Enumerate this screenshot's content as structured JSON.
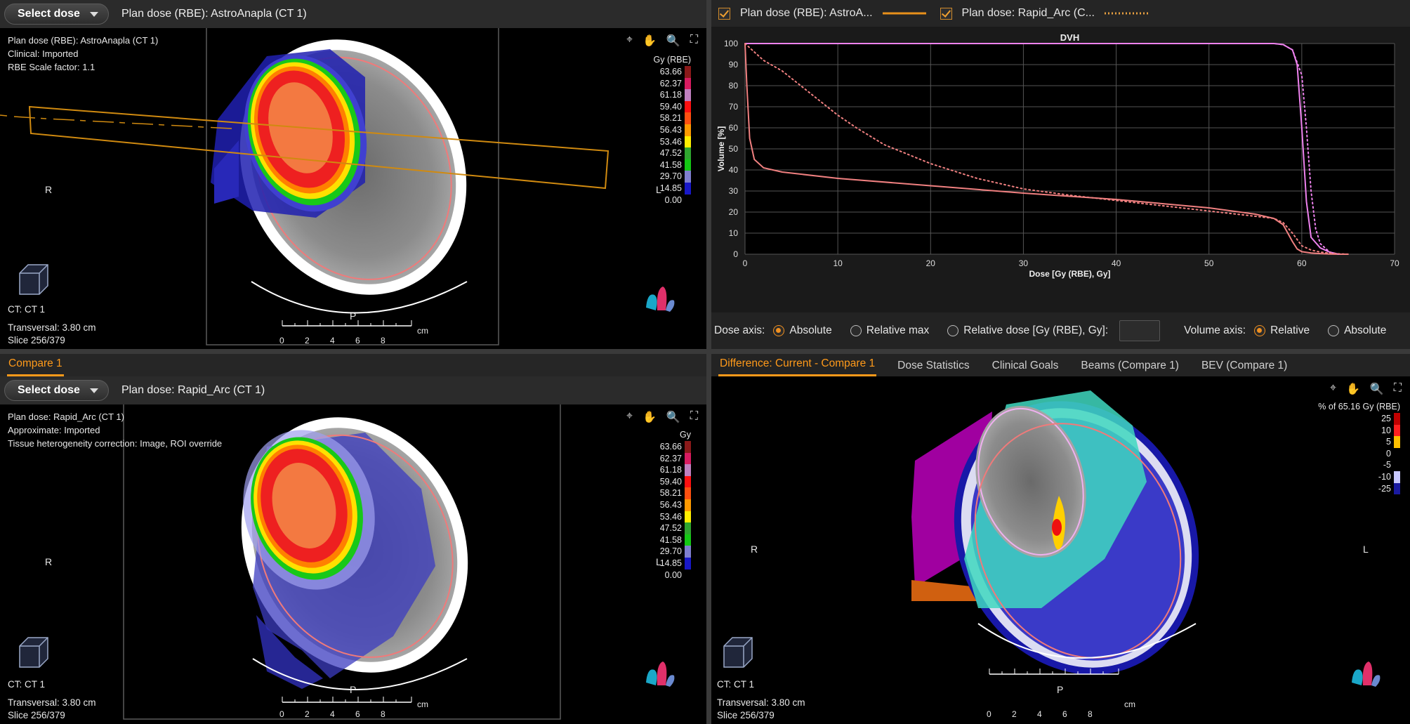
{
  "top_left": {
    "dropdown_label": "Select dose",
    "title": "Plan dose (RBE): AstroAnapla (CT 1)",
    "info": [
      "Plan dose (RBE): AstroAnapla (CT 1)",
      "Clinical: Imported",
      "RBE Scale factor: 1.1"
    ],
    "legend_unit": "Gy (RBE)",
    "orient_left": "R",
    "orient_bottom": "P",
    "orient_l": "L",
    "footer": [
      "CT: CT 1",
      "Transversal: 3.80 cm",
      "Slice 256/379"
    ]
  },
  "bottom_left": {
    "tab": "Compare 1",
    "dropdown_label": "Select dose",
    "title": "Plan dose: Rapid_Arc (CT 1)",
    "info": [
      "Plan dose: Rapid_Arc (CT 1)",
      "Approximate: Imported",
      "Tissue heterogeneity correction: Image, ROI override"
    ],
    "legend_unit": "Gy",
    "orient_left": "R",
    "orient_bottom": "P",
    "orient_l": "L",
    "footer": [
      "CT: CT 1",
      "Transversal: 3.80 cm",
      "Slice 256/379"
    ]
  },
  "dose_legend": {
    "values": [
      "63.66",
      "62.37",
      "61.18",
      "59.40",
      "58.21",
      "56.43",
      "53.46",
      "47.52",
      "41.58",
      "29.70",
      "14.85",
      "0.00"
    ],
    "colors": [
      "#8b1a1a",
      "#d81b60",
      "#c080c0",
      "#ff1010",
      "#ff5010",
      "#ff9a00",
      "#ffee00",
      "#2fa52f",
      "#14c814",
      "#7f7fd0",
      "#1818c8",
      "#000000"
    ]
  },
  "top_right": {
    "series_labels": [
      "Plan dose (RBE): AstroA...",
      "Plan dose: Rapid_Arc (C..."
    ],
    "series_colors": [
      "#e8901a",
      "#e8a040"
    ]
  },
  "dvh_options": {
    "dose_axis_label": "Dose axis:",
    "dose_options": [
      "Absolute",
      "Relative max",
      "Relative dose [Gy (RBE), Gy]:"
    ],
    "dose_selected": 0,
    "dose_input": "",
    "volume_axis_label": "Volume axis:",
    "volume_options": [
      "Relative",
      "Absolute"
    ],
    "volume_selected": 0
  },
  "bottom_right": {
    "tabs": [
      "Difference: Current - Compare 1",
      "Dose Statistics",
      "Clinical Goals",
      "Beams (Compare 1)",
      "BEV (Compare 1)"
    ],
    "active_tab": 0,
    "legend_unit": "% of 65.16 Gy (RBE)",
    "legend_values": [
      "25",
      "10",
      "5",
      "0",
      "-5",
      "-10",
      "-25"
    ],
    "legend_colors": [
      "#c00000",
      "#ff2020",
      "#ffc000",
      "#000000",
      "#000000",
      "#c8c8ff",
      "#1a1aa0"
    ],
    "orient_left": "R",
    "orient_bottom": "P",
    "orient_l": "L",
    "footer": [
      "CT: CT 1",
      "Transversal: 3.80 cm",
      "Slice 256/379"
    ]
  },
  "scale": {
    "ticks": [
      "0",
      "2",
      "4",
      "6",
      "8"
    ],
    "unit": "cm"
  },
  "icons": {
    "tools": [
      "crosshair-tool-icon",
      "pan-hand-icon",
      "zoom-icon",
      "fit-expand-icon"
    ]
  },
  "chart_data": {
    "type": "line",
    "title": "DVH",
    "xlabel": "Dose [Gy (RBE), Gy]",
    "ylabel": "Volume [%]",
    "xlim": [
      0,
      70
    ],
    "ylim": [
      0,
      100
    ],
    "xticks": [
      0,
      10,
      20,
      30,
      40,
      50,
      60,
      70
    ],
    "yticks": [
      0,
      10,
      20,
      30,
      40,
      50,
      60,
      70,
      80,
      90,
      100
    ],
    "grid": true,
    "series": [
      {
        "style": "solid",
        "color": "#ee82ee",
        "x": [
          0,
          57,
          58,
          59,
          59.5,
          60,
          60.5,
          61,
          62,
          63,
          64
        ],
        "y": [
          100,
          100,
          99.5,
          97,
          90,
          60,
          25,
          8,
          3,
          1,
          0
        ]
      },
      {
        "style": "solid",
        "color": "#f08080",
        "x": [
          0,
          0.2,
          0.5,
          1,
          2,
          4,
          10,
          20,
          30,
          40,
          50,
          55,
          57,
          58,
          59,
          59.5,
          60,
          61,
          62,
          63,
          64,
          65
        ],
        "y": [
          100,
          80,
          55,
          45,
          41,
          39,
          36,
          32.5,
          29,
          26,
          22,
          19,
          17,
          14,
          6,
          2.5,
          1.2,
          0.6,
          0.3,
          0.1,
          0,
          0
        ]
      },
      {
        "style": "dotted",
        "color": "#ee82ee",
        "x": [
          0,
          57,
          58,
          59,
          60,
          60.5,
          61,
          61.5,
          62,
          63,
          64
        ],
        "y": [
          100,
          100,
          99.5,
          97,
          85,
          60,
          30,
          12,
          5,
          1,
          0
        ]
      },
      {
        "style": "dotted",
        "color": "#f08080",
        "x": [
          0,
          1,
          2,
          4,
          6,
          8,
          10,
          12,
          15,
          20,
          25,
          30,
          35,
          40,
          45,
          50,
          55,
          57,
          58,
          59,
          60,
          61,
          62,
          63,
          64,
          65
        ],
        "y": [
          100,
          96,
          92,
          87,
          80,
          73,
          66,
          60,
          52,
          43,
          36,
          31,
          28,
          25.5,
          23,
          20.5,
          18,
          17,
          15,
          10,
          4,
          2,
          1,
          0.5,
          0.2,
          0
        ]
      }
    ]
  }
}
